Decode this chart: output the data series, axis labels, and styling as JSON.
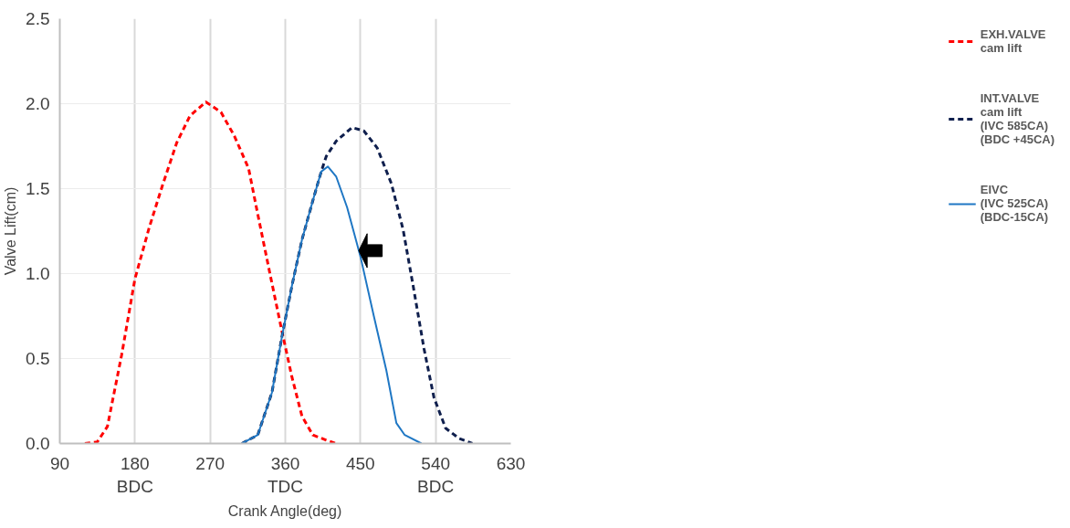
{
  "chart_data": {
    "type": "line",
    "xlabel": "Crank Angle(deg)",
    "ylabel": "Valve Lift(cm)",
    "xlim": [
      90,
      630
    ],
    "xticks": [
      90,
      {
        "value": 180,
        "label": "180\nBDC"
      },
      270,
      {
        "value": 360,
        "label": "360\nTDC"
      },
      450,
      {
        "value": 540,
        "label": "540\nBDC"
      },
      630
    ],
    "ylim": [
      0,
      2.5
    ],
    "yticks": [
      {
        "value": 0,
        "label": "0.0"
      },
      0.5,
      {
        "value": 1,
        "label": "1.0"
      },
      1.5,
      {
        "value": 2,
        "label": "2.0"
      },
      2.5
    ],
    "grid": true,
    "legend": "right",
    "marker": "none",
    "series": [
      {
        "name": "EXH.VALVE\ncam lift",
        "color": "#ff0000",
        "line_style": "dashed",
        "x": [
          120,
          135,
          147,
          164,
          180,
          197,
          213,
          230,
          246,
          265,
          283,
          299,
          316,
          327,
          342,
          356,
          368,
          380,
          393,
          409,
          421
        ],
        "values": [
          0,
          0.01,
          0.1,
          0.52,
          0.97,
          1.27,
          1.52,
          1.77,
          1.93,
          2.01,
          1.95,
          1.81,
          1.62,
          1.35,
          0.99,
          0.66,
          0.39,
          0.16,
          0.05,
          0.02,
          0
        ]
      },
      {
        "name": "INT.VALVE\ncam lift\n(IVC 585CA)\n(BDC +45CA)",
        "color": "#0f1f4d",
        "line_style": "dashed",
        "x": [
          308,
          327,
          344,
          356,
          368,
          380,
          393,
          403,
          409,
          421,
          440,
          454,
          470,
          487,
          501,
          513,
          526,
          538,
          552,
          568,
          584
        ],
        "values": [
          0,
          0.05,
          0.3,
          0.63,
          0.93,
          1.2,
          1.43,
          1.6,
          1.69,
          1.78,
          1.86,
          1.84,
          1.74,
          1.53,
          1.26,
          0.93,
          0.56,
          0.27,
          0.09,
          0.03,
          0
        ]
      },
      {
        "name": "EIVC\n(IVC 525CA)\n(BDC-15CA)",
        "color": "#1f77c4",
        "line_style": "solid",
        "x": [
          308,
          327,
          344,
          356,
          368,
          380,
          393,
          403,
          411,
          421,
          434,
          450,
          466,
          481,
          493,
          503,
          523
        ],
        "values": [
          0,
          0.05,
          0.3,
          0.63,
          0.93,
          1.2,
          1.43,
          1.6,
          1.63,
          1.57,
          1.39,
          1.1,
          0.75,
          0.43,
          0.12,
          0.05,
          0
        ]
      }
    ]
  }
}
